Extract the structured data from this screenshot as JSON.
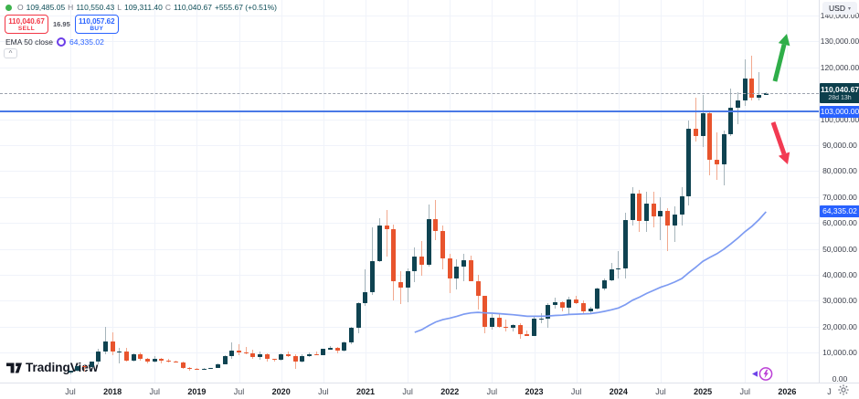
{
  "header": {
    "ohlc": {
      "o_label": "O",
      "o_value": "109,485.05",
      "h_label": "H",
      "h_value": "110,550.43",
      "l_label": "L",
      "l_value": "109,311.40",
      "c_label": "C",
      "c_value": "110,040.67",
      "change": "+555.67 (+0.51%)"
    },
    "sell": {
      "price": "110,040.67",
      "label": "SELL"
    },
    "spread": "16.95",
    "buy": {
      "price": "110,057.62",
      "label": "BUY"
    },
    "indicator": {
      "name": "EMA 50 close",
      "value": "64,335.02"
    },
    "collapse_glyph": "^"
  },
  "price_scale": {
    "currency": "USD",
    "caret": "▾"
  },
  "badges": {
    "current_price": "110,040.67",
    "countdown": "28d 13h",
    "level_line": "103,000.00",
    "ema": "64,335.02"
  },
  "watermark": {
    "text": "TradingView"
  },
  "chart_data": {
    "type": "candlestick",
    "ylim": [
      0,
      146000
    ],
    "y_ticks": [
      {
        "v": 140000,
        "label": "140,000.00"
      },
      {
        "v": 130000,
        "label": "130,000.00"
      },
      {
        "v": 120000,
        "label": "120,000.00"
      },
      {
        "v": 100000,
        "label": "100,000.00"
      },
      {
        "v": 90000,
        "label": "90,000.00"
      },
      {
        "v": 80000,
        "label": "80,000.00"
      },
      {
        "v": 70000,
        "label": "70,000.00"
      },
      {
        "v": 60000,
        "label": "60,000.00"
      },
      {
        "v": 50000,
        "label": "50,000.00"
      },
      {
        "v": 40000,
        "label": "40,000.00"
      },
      {
        "v": 30000,
        "label": "30,000.00"
      },
      {
        "v": 20000,
        "label": "20,000.00"
      },
      {
        "v": 10000,
        "label": "10,000.00"
      },
      {
        "v": 0,
        "label": "0.00"
      }
    ],
    "x_ticks": [
      {
        "i": 0,
        "label": "Jul",
        "year": false
      },
      {
        "i": 6,
        "label": "2018",
        "year": true
      },
      {
        "i": 12,
        "label": "Jul",
        "year": false
      },
      {
        "i": 18,
        "label": "2019",
        "year": true
      },
      {
        "i": 24,
        "label": "Jul",
        "year": false
      },
      {
        "i": 30,
        "label": "2020",
        "year": true
      },
      {
        "i": 36,
        "label": "Jul",
        "year": false
      },
      {
        "i": 42,
        "label": "2021",
        "year": true
      },
      {
        "i": 48,
        "label": "Jul",
        "year": false
      },
      {
        "i": 54,
        "label": "2022",
        "year": true
      },
      {
        "i": 60,
        "label": "Jul",
        "year": false
      },
      {
        "i": 66,
        "label": "2023",
        "year": true
      },
      {
        "i": 72,
        "label": "Jul",
        "year": false
      },
      {
        "i": 78,
        "label": "2024",
        "year": true
      },
      {
        "i": 84,
        "label": "Jul",
        "year": false
      },
      {
        "i": 90,
        "label": "2025",
        "year": true
      },
      {
        "i": 96,
        "label": "Jul",
        "year": false
      },
      {
        "i": 102,
        "label": "2026",
        "year": true
      },
      {
        "i": 108,
        "label": "J",
        "year": false
      }
    ],
    "candles": [
      [
        2481,
        2916,
        1758,
        2875
      ],
      [
        2875,
        4980,
        2617,
        4735
      ],
      [
        4735,
        4975,
        2817,
        4338
      ],
      [
        4341,
        6470,
        4110,
        6468
      ],
      [
        6468,
        11300,
        5325,
        10233
      ],
      [
        10233,
        19891,
        9280,
        14156
      ],
      [
        14156,
        17712,
        9035,
        10221
      ],
      [
        10221,
        11786,
        5920,
        10397
      ],
      [
        10397,
        11670,
        6600,
        6938
      ],
      [
        6938,
        9760,
        6430,
        9240
      ],
      [
        9240,
        9990,
        7040,
        7494
      ],
      [
        7494,
        7780,
        5780,
        6404
      ],
      [
        6404,
        8500,
        6070,
        7729
      ],
      [
        7729,
        7760,
        5860,
        7037
      ],
      [
        7037,
        7410,
        6120,
        6625
      ],
      [
        6625,
        6820,
        6200,
        6317
      ],
      [
        6317,
        6550,
        3650,
        4017
      ],
      [
        4017,
        4410,
        3150,
        3742
      ],
      [
        3742,
        4110,
        3350,
        3457
      ],
      [
        3457,
        4190,
        3330,
        3854
      ],
      [
        3854,
        4140,
        3660,
        4105
      ],
      [
        4105,
        5650,
        4050,
        5350
      ],
      [
        5350,
        9090,
        5330,
        8574
      ],
      [
        8574,
        13880,
        7430,
        10817
      ],
      [
        10817,
        13200,
        9080,
        10085
      ],
      [
        10085,
        12325,
        9230,
        9630
      ],
      [
        9630,
        10950,
        7700,
        8308
      ],
      [
        8308,
        10540,
        7290,
        9199
      ],
      [
        9199,
        9620,
        6520,
        7569
      ],
      [
        7569,
        7740,
        6430,
        7193
      ],
      [
        7193,
        9570,
        6850,
        9350
      ],
      [
        9350,
        10500,
        8410,
        8599
      ],
      [
        8599,
        9190,
        3850,
        6438
      ],
      [
        6438,
        9460,
        6140,
        8658
      ],
      [
        8658,
        10070,
        8110,
        9461
      ],
      [
        9461,
        10380,
        8830,
        9137
      ],
      [
        9137,
        11450,
        8900,
        11323
      ],
      [
        11323,
        12480,
        11000,
        11680
      ],
      [
        11680,
        12050,
        9820,
        10776
      ],
      [
        10776,
        14100,
        10380,
        13797
      ],
      [
        13797,
        19863,
        13200,
        19713
      ],
      [
        19713,
        29300,
        17570,
        29001
      ],
      [
        29001,
        41950,
        28130,
        33114
      ],
      [
        33114,
        58350,
        32320,
        45137
      ],
      [
        45137,
        61780,
        44950,
        58918
      ],
      [
        58918,
        64854,
        46930,
        57750
      ],
      [
        57750,
        59500,
        30000,
        37332
      ],
      [
        37332,
        41330,
        28800,
        35040
      ],
      [
        35040,
        42448,
        29300,
        41553
      ],
      [
        41553,
        50500,
        37300,
        47130
      ],
      [
        47130,
        52920,
        39600,
        43790
      ],
      [
        43790,
        66990,
        43283,
        61318
      ],
      [
        61318,
        69000,
        53256,
        56987
      ],
      [
        56987,
        59100,
        42000,
        46216
      ],
      [
        46216,
        47990,
        32950,
        38483
      ],
      [
        38483,
        45820,
        34300,
        43192
      ],
      [
        43192,
        48190,
        37550,
        45538
      ],
      [
        45538,
        47450,
        37580,
        37630
      ],
      [
        37630,
        40020,
        26700,
        31792
      ],
      [
        31792,
        31990,
        17590,
        19925
      ],
      [
        19925,
        24670,
        18780,
        23296
      ],
      [
        23296,
        25200,
        19520,
        20049
      ],
      [
        20049,
        22800,
        18100,
        19431
      ],
      [
        19431,
        21080,
        18190,
        20495
      ],
      [
        20495,
        21480,
        15460,
        17168
      ],
      [
        17168,
        18390,
        16250,
        16547
      ],
      [
        16547,
        23960,
        16490,
        23139
      ],
      [
        23139,
        25250,
        21350,
        23147
      ],
      [
        23147,
        29180,
        19550,
        28478
      ],
      [
        28478,
        31050,
        26940,
        29252
      ],
      [
        29252,
        29820,
        25800,
        27219
      ],
      [
        27219,
        31400,
        24750,
        30477
      ],
      [
        30477,
        31850,
        28850,
        29230
      ],
      [
        29230,
        30230,
        25350,
        25931
      ],
      [
        25931,
        27480,
        24900,
        26967
      ],
      [
        26967,
        35150,
        26530,
        34667
      ],
      [
        34667,
        38450,
        34080,
        37718
      ],
      [
        37718,
        44700,
        37615,
        42265
      ],
      [
        42265,
        48970,
        38500,
        42580
      ],
      [
        42580,
        63930,
        38640,
        61198
      ],
      [
        61198,
        73794,
        59100,
        71333
      ],
      [
        71333,
        72800,
        56500,
        60636
      ],
      [
        60636,
        71980,
        56550,
        67491
      ],
      [
        67491,
        71900,
        58400,
        62678
      ],
      [
        62678,
        70080,
        53500,
        64619
      ],
      [
        64619,
        65600,
        49000,
        58969
      ],
      [
        58969,
        66500,
        52550,
        63329
      ],
      [
        63329,
        73620,
        58900,
        70215
      ],
      [
        70215,
        99655,
        66835,
        96449
      ],
      [
        96449,
        108268,
        91530,
        93429
      ],
      [
        93429,
        109358,
        89164,
        102405
      ],
      [
        102405,
        102500,
        78258,
        84349
      ],
      [
        84349,
        95000,
        76600,
        82548
      ],
      [
        82548,
        95768,
        74508,
        94207
      ],
      [
        94207,
        112000,
        93360,
        104598
      ],
      [
        104598,
        110530,
        98240,
        107135
      ],
      [
        107135,
        123218,
        105116,
        115758
      ],
      [
        115758,
        124474,
        107270,
        108236
      ],
      [
        108236,
        118000,
        107250,
        109485
      ],
      [
        109485.05,
        110550.43,
        109311.4,
        110040.67
      ]
    ],
    "ema50": {
      "start_index": 49,
      "values": [
        17800,
        18800,
        20400,
        21800,
        22700,
        23300,
        24000,
        24800,
        25300,
        25500,
        25300,
        25200,
        25000,
        24800,
        24600,
        24300,
        24000,
        24000,
        24000,
        24100,
        24300,
        24400,
        24700,
        24800,
        24900,
        25000,
        25400,
        25900,
        26500,
        27200,
        28500,
        30200,
        31400,
        32800,
        34000,
        35200,
        36100,
        37200,
        38500,
        40800,
        42900,
        45200,
        46700,
        48100,
        49900,
        52000,
        54200,
        56600,
        58700,
        61300,
        64335.02
      ]
    },
    "level_line_price": 103000,
    "current_price": 110040.67,
    "countdown": "28d 13h",
    "colors": {
      "up": "#0f4351",
      "down": "#e8542d",
      "up_wick": "#a6b5bb",
      "down_wick": "#f2a98f",
      "ema": "#7d9bf2",
      "level_line": "#4a79e6",
      "badge_blue": "#2962ff",
      "badge_current": "#0d3f4c",
      "arrow_up": "#2fae49",
      "arrow_down": "#f23a52"
    },
    "drawings": [
      {
        "name": "up-arrow",
        "color": "#2fae49",
        "from": [
          848,
          89
        ],
        "to": [
          861,
          37
        ]
      },
      {
        "name": "down-arrow",
        "color": "#f23a52",
        "from": [
          846,
          134
        ],
        "to": [
          862,
          180
        ]
      }
    ]
  }
}
